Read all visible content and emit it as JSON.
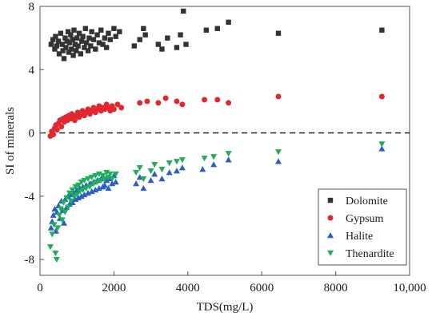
{
  "chart_data": {
    "type": "scatter",
    "xlabel": "TDS(mg/L)",
    "ylabel": "SI of minerals",
    "xlim": [
      0,
      10000
    ],
    "ylim": [
      -9,
      8
    ],
    "x_ticks": [
      0,
      2000,
      4000,
      6000,
      8000,
      10000
    ],
    "x_tick_labels": [
      "0",
      "2000",
      "4000",
      "6000",
      "8000",
      "10,000"
    ],
    "y_ticks": [
      -8,
      -4,
      0,
      4,
      8
    ],
    "y_tick_labels": [
      "-8",
      "-4",
      "0",
      "4",
      "8"
    ],
    "reference_line": {
      "y": 0,
      "style": "dashed"
    },
    "legend_position": "bottom-right",
    "series": [
      {
        "name": "Dolomite",
        "marker": "square",
        "color": "#333333",
        "points": [
          [
            300,
            5.6
          ],
          [
            350,
            5.9
          ],
          [
            400,
            5.3
          ],
          [
            420,
            6.1
          ],
          [
            450,
            5.5
          ],
          [
            500,
            5.8
          ],
          [
            520,
            5.0
          ],
          [
            560,
            6.3
          ],
          [
            600,
            5.6
          ],
          [
            620,
            5.2
          ],
          [
            650,
            4.7
          ],
          [
            680,
            6.0
          ],
          [
            700,
            5.4
          ],
          [
            730,
            5.8
          ],
          [
            760,
            6.4
          ],
          [
            780,
            5.1
          ],
          [
            800,
            5.7
          ],
          [
            830,
            6.2
          ],
          [
            850,
            5.3
          ],
          [
            880,
            5.9
          ],
          [
            900,
            4.9
          ],
          [
            920,
            6.5
          ],
          [
            950,
            5.6
          ],
          [
            980,
            5.2
          ],
          [
            1000,
            6.0
          ],
          [
            1030,
            5.5
          ],
          [
            1060,
            6.3
          ],
          [
            1100,
            5.0
          ],
          [
            1130,
            5.8
          ],
          [
            1160,
            6.1
          ],
          [
            1200,
            5.4
          ],
          [
            1230,
            6.6
          ],
          [
            1260,
            5.7
          ],
          [
            1300,
            5.2
          ],
          [
            1330,
            6.0
          ],
          [
            1370,
            5.5
          ],
          [
            1400,
            6.4
          ],
          [
            1450,
            5.9
          ],
          [
            1500,
            5.3
          ],
          [
            1550,
            6.2
          ],
          [
            1600,
            5.7
          ],
          [
            1650,
            6.5
          ],
          [
            1700,
            5.6
          ],
          [
            1750,
            6.0
          ],
          [
            1800,
            5.4
          ],
          [
            1850,
            6.3
          ],
          [
            1900,
            5.9
          ],
          [
            2000,
            6.6
          ],
          [
            2050,
            6.1
          ],
          [
            2150,
            6.4
          ],
          [
            2550,
            5.5
          ],
          [
            2700,
            5.9
          ],
          [
            2800,
            6.6
          ],
          [
            2850,
            6.2
          ],
          [
            3200,
            5.6
          ],
          [
            3300,
            5.3
          ],
          [
            3450,
            6.0
          ],
          [
            3700,
            5.4
          ],
          [
            3800,
            6.2
          ],
          [
            3880,
            7.7
          ],
          [
            3950,
            5.6
          ],
          [
            4500,
            6.5
          ],
          [
            4800,
            6.6
          ],
          [
            5100,
            7.0
          ],
          [
            6450,
            6.3
          ],
          [
            9250,
            6.5
          ]
        ]
      },
      {
        "name": "Gypsum",
        "marker": "circle",
        "color": "#e0282e",
        "points": [
          [
            280,
            -0.2
          ],
          [
            320,
            0.1
          ],
          [
            360,
            -0.1
          ],
          [
            400,
            0.3
          ],
          [
            430,
            0.5
          ],
          [
            460,
            0.2
          ],
          [
            500,
            0.6
          ],
          [
            540,
            0.8
          ],
          [
            580,
            0.4
          ],
          [
            620,
            0.9
          ],
          [
            660,
            0.7
          ],
          [
            700,
            1.0
          ],
          [
            740,
            0.8
          ],
          [
            780,
            1.1
          ],
          [
            820,
            0.9
          ],
          [
            860,
            1.2
          ],
          [
            900,
            1.0
          ],
          [
            940,
            0.8
          ],
          [
            980,
            1.1
          ],
          [
            1020,
            1.3
          ],
          [
            1060,
            1.0
          ],
          [
            1100,
            1.2
          ],
          [
            1150,
            1.4
          ],
          [
            1200,
            1.1
          ],
          [
            1250,
            1.3
          ],
          [
            1300,
            1.5
          ],
          [
            1350,
            1.2
          ],
          [
            1400,
            1.4
          ],
          [
            1450,
            1.6
          ],
          [
            1500,
            1.3
          ],
          [
            1550,
            1.5
          ],
          [
            1600,
            1.7
          ],
          [
            1650,
            1.4
          ],
          [
            1700,
            1.6
          ],
          [
            1750,
            1.5
          ],
          [
            1800,
            1.8
          ],
          [
            1850,
            1.6
          ],
          [
            1900,
            1.4
          ],
          [
            1950,
            1.7
          ],
          [
            2000,
            1.5
          ],
          [
            2100,
            1.8
          ],
          [
            2200,
            1.6
          ],
          [
            2700,
            1.9
          ],
          [
            2900,
            2.0
          ],
          [
            3200,
            1.9
          ],
          [
            3400,
            2.2
          ],
          [
            3700,
            2.0
          ],
          [
            3850,
            1.8
          ],
          [
            4450,
            2.1
          ],
          [
            4800,
            2.1
          ],
          [
            5100,
            1.9
          ],
          [
            6450,
            2.3
          ],
          [
            9250,
            2.3
          ]
        ]
      },
      {
        "name": "Halite",
        "marker": "triangle-up",
        "color": "#2b5fc4",
        "points": [
          [
            300,
            -6.0
          ],
          [
            330,
            -5.6
          ],
          [
            360,
            -5.2
          ],
          [
            400,
            -4.8
          ],
          [
            430,
            -6.2
          ],
          [
            460,
            -5.0
          ],
          [
            500,
            -4.6
          ],
          [
            540,
            -5.4
          ],
          [
            580,
            -4.3
          ],
          [
            620,
            -4.9
          ],
          [
            650,
            -5.7
          ],
          [
            680,
            -4.2
          ],
          [
            720,
            -4.7
          ],
          [
            760,
            -4.0
          ],
          [
            800,
            -4.5
          ],
          [
            840,
            -3.9
          ],
          [
            880,
            -4.4
          ],
          [
            920,
            -3.8
          ],
          [
            960,
            -4.2
          ],
          [
            1000,
            -3.6
          ],
          [
            1040,
            -4.1
          ],
          [
            1080,
            -3.5
          ],
          [
            1120,
            -4.0
          ],
          [
            1160,
            -3.4
          ],
          [
            1200,
            -3.9
          ],
          [
            1250,
            -3.3
          ],
          [
            1300,
            -3.8
          ],
          [
            1350,
            -3.2
          ],
          [
            1400,
            -3.7
          ],
          [
            1450,
            -3.1
          ],
          [
            1500,
            -3.6
          ],
          [
            1550,
            -3.0
          ],
          [
            1600,
            -3.5
          ],
          [
            1650,
            -2.9
          ],
          [
            1700,
            -3.4
          ],
          [
            1750,
            -3.3
          ],
          [
            1800,
            -3.0
          ],
          [
            1850,
            -3.5
          ],
          [
            1900,
            -2.9
          ],
          [
            1950,
            -3.2
          ],
          [
            2000,
            -2.7
          ],
          [
            2050,
            -3.1
          ],
          [
            2600,
            -3.2
          ],
          [
            2700,
            -2.8
          ],
          [
            2800,
            -3.5
          ],
          [
            3000,
            -3.0
          ],
          [
            3100,
            -2.6
          ],
          [
            3300,
            -2.9
          ],
          [
            3500,
            -2.5
          ],
          [
            3700,
            -2.4
          ],
          [
            3850,
            -2.2
          ],
          [
            4400,
            -2.3
          ],
          [
            4700,
            -2.0
          ],
          [
            5100,
            -1.7
          ],
          [
            6450,
            -1.8
          ],
          [
            9250,
            -1.0
          ]
        ]
      },
      {
        "name": "Thenardite",
        "marker": "triangle-down",
        "color": "#1fae5a",
        "points": [
          [
            280,
            -7.2
          ],
          [
            330,
            -6.4
          ],
          [
            380,
            -5.8
          ],
          [
            420,
            -7.6
          ],
          [
            450,
            -8.0
          ],
          [
            480,
            -6.0
          ],
          [
            520,
            -5.2
          ],
          [
            560,
            -4.8
          ],
          [
            600,
            -5.5
          ],
          [
            640,
            -4.4
          ],
          [
            680,
            -5.0
          ],
          [
            720,
            -4.1
          ],
          [
            760,
            -4.7
          ],
          [
            800,
            -3.8
          ],
          [
            840,
            -4.3
          ],
          [
            880,
            -3.6
          ],
          [
            920,
            -4.0
          ],
          [
            960,
            -3.4
          ],
          [
            1000,
            -3.9
          ],
          [
            1040,
            -3.3
          ],
          [
            1080,
            -3.7
          ],
          [
            1120,
            -3.1
          ],
          [
            1160,
            -3.6
          ],
          [
            1200,
            -3.0
          ],
          [
            1250,
            -3.5
          ],
          [
            1300,
            -2.9
          ],
          [
            1350,
            -3.4
          ],
          [
            1400,
            -2.8
          ],
          [
            1450,
            -3.2
          ],
          [
            1500,
            -2.7
          ],
          [
            1550,
            -3.1
          ],
          [
            1600,
            -2.6
          ],
          [
            1650,
            -3.0
          ],
          [
            1700,
            -2.7
          ],
          [
            1750,
            -2.9
          ],
          [
            1800,
            -2.5
          ],
          [
            1850,
            -2.8
          ],
          [
            1900,
            -2.6
          ],
          [
            1950,
            -2.9
          ],
          [
            2050,
            -2.6
          ],
          [
            2600,
            -2.5
          ],
          [
            2700,
            -2.2
          ],
          [
            2800,
            -2.9
          ],
          [
            3000,
            -2.4
          ],
          [
            3100,
            -2.0
          ],
          [
            3300,
            -2.3
          ],
          [
            3500,
            -1.9
          ],
          [
            3700,
            -1.8
          ],
          [
            3850,
            -1.7
          ],
          [
            4450,
            -1.6
          ],
          [
            4700,
            -1.5
          ],
          [
            5100,
            -1.3
          ],
          [
            6450,
            -1.2
          ],
          [
            9250,
            -0.7
          ]
        ]
      }
    ]
  }
}
